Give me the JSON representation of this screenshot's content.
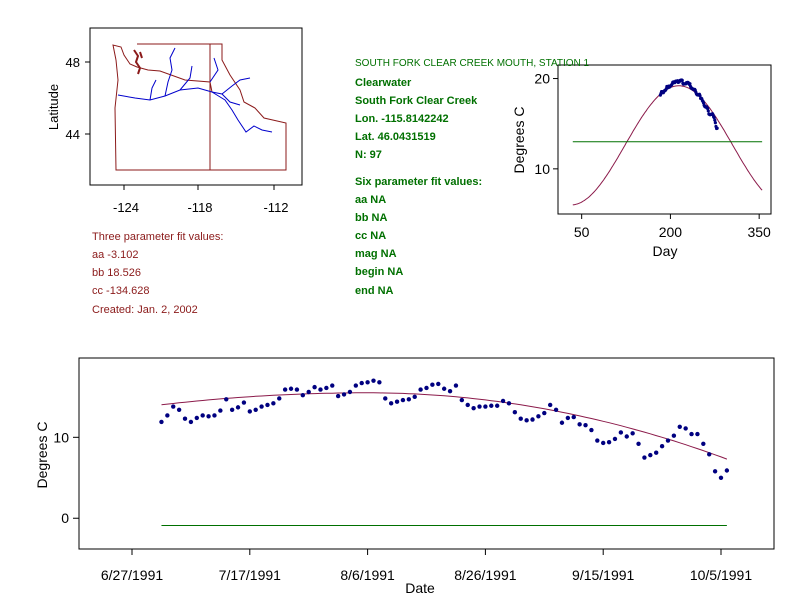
{
  "map": {
    "ylabel": "Latitude",
    "yticks": [
      "48",
      "44"
    ],
    "xticks": [
      "-124",
      "-118",
      "-112"
    ]
  },
  "station": {
    "title": "SOUTH FORK CLEAR CREEK MOUTH, STATION 1",
    "basin": "Clearwater",
    "stream": "South Fork Clear Creek",
    "lon": "Lon. -115.8142242",
    "lat": "Lat. 46.0431519",
    "n": "N: 97"
  },
  "six_param": {
    "heading": "Six parameter fit values:",
    "lines": [
      "aa NA",
      "bb NA",
      "cc NA",
      "mag NA",
      "begin NA",
      "end NA"
    ]
  },
  "three_param": {
    "heading": "Three parameter fit values:",
    "lines": [
      "aa -3.102",
      "bb 18.526",
      "cc -134.628"
    ],
    "created": "Created:   Jan. 2, 2002"
  },
  "colors": {
    "points": "#000080",
    "fit_curve": "#8b1a4a",
    "mean_line": "#007000",
    "label_red": "#8b1a1a",
    "label_green": "#007000"
  },
  "chart_data": [
    {
      "type": "scatter",
      "xlabel": "Day",
      "ylabel": "Degrees C",
      "xticks": [
        50,
        200,
        350
      ],
      "yticks": [
        10,
        20
      ],
      "xlim": [
        10,
        370
      ],
      "ylim": [
        5,
        21.5
      ],
      "fit": {
        "aa": -3.102,
        "bb": 18.526,
        "cc": -134.628
      },
      "mean_line": 13.0,
      "mean_line_x": [
        35,
        355
      ],
      "curve_x": [
        35,
        355
      ]
    },
    {
      "type": "scatter",
      "xlabel": "Date",
      "ylabel": "Degrees C",
      "xticks": [
        "6/27/1991",
        "7/17/1991",
        "8/6/1991",
        "8/26/1991",
        "9/15/1991",
        "10/5/1991"
      ],
      "ytick_values": [
        0,
        10
      ],
      "start_date": "6/27/1991",
      "xlim_days": [
        -9,
        109
      ],
      "ylim": [
        -3.8,
        19.8
      ],
      "mean_line": -0.9,
      "series": [
        {
          "values": [
            [
              "7/2/1991",
              11.9
            ],
            [
              "7/3/1991",
              12.7
            ],
            [
              "7/4/1991",
              13.8
            ],
            [
              "7/5/1991",
              13.4
            ],
            [
              "7/6/1991",
              12.3
            ],
            [
              "7/7/1991",
              11.9
            ],
            [
              "7/8/1991",
              12.4
            ],
            [
              "7/9/1991",
              12.7
            ],
            [
              "7/10/1991",
              12.6
            ],
            [
              "7/11/1991",
              12.7
            ],
            [
              "7/12/1991",
              13.3
            ],
            [
              "7/13/1991",
              14.7
            ],
            [
              "7/14/1991",
              13.4
            ],
            [
              "7/15/1991",
              13.7
            ],
            [
              "7/16/1991",
              14.3
            ],
            [
              "7/17/1991",
              13.2
            ],
            [
              "7/18/1991",
              13.4
            ],
            [
              "7/19/1991",
              13.8
            ],
            [
              "7/20/1991",
              14.0
            ],
            [
              "7/21/1991",
              14.2
            ],
            [
              "7/22/1991",
              14.8
            ],
            [
              "7/23/1991",
              15.9
            ],
            [
              "7/24/1991",
              16.0
            ],
            [
              "7/25/1991",
              15.9
            ],
            [
              "7/26/1991",
              15.2
            ],
            [
              "7/27/1991",
              15.6
            ],
            [
              "7/28/1991",
              16.2
            ],
            [
              "7/29/1991",
              15.9
            ],
            [
              "7/30/1991",
              16.1
            ],
            [
              "7/31/1991",
              16.4
            ],
            [
              "8/1/1991",
              15.1
            ],
            [
              "8/2/1991",
              15.3
            ],
            [
              "8/3/1991",
              15.6
            ],
            [
              "8/4/1991",
              16.4
            ],
            [
              "8/5/1991",
              16.7
            ],
            [
              "8/6/1991",
              16.8
            ],
            [
              "8/7/1991",
              17.0
            ],
            [
              "8/8/1991",
              16.8
            ],
            [
              "8/9/1991",
              14.8
            ],
            [
              "8/10/1991",
              14.2
            ],
            [
              "8/11/1991",
              14.4
            ],
            [
              "8/12/1991",
              14.6
            ],
            [
              "8/13/1991",
              14.7
            ],
            [
              "8/14/1991",
              15.0
            ],
            [
              "8/15/1991",
              15.9
            ],
            [
              "8/16/1991",
              16.1
            ],
            [
              "8/17/1991",
              16.5
            ],
            [
              "8/18/1991",
              16.6
            ],
            [
              "8/19/1991",
              16.0
            ],
            [
              "8/20/1991",
              15.7
            ],
            [
              "8/21/1991",
              16.4
            ],
            [
              "8/22/1991",
              14.6
            ],
            [
              "8/23/1991",
              14.0
            ],
            [
              "8/24/1991",
              13.6
            ],
            [
              "8/25/1991",
              13.8
            ],
            [
              "8/26/1991",
              13.8
            ],
            [
              "8/27/1991",
              13.9
            ],
            [
              "8/28/1991",
              13.9
            ],
            [
              "8/29/1991",
              14.5
            ],
            [
              "8/30/1991",
              14.2
            ],
            [
              "8/31/1991",
              13.1
            ],
            [
              "9/1/1991",
              12.3
            ],
            [
              "9/2/1991",
              12.1
            ],
            [
              "9/3/1991",
              12.2
            ],
            [
              "9/4/1991",
              12.6
            ],
            [
              "9/5/1991",
              13.0
            ],
            [
              "9/6/1991",
              14.0
            ],
            [
              "9/7/1991",
              13.4
            ],
            [
              "9/8/1991",
              11.8
            ],
            [
              "9/9/1991",
              12.4
            ],
            [
              "9/10/1991",
              12.5
            ],
            [
              "9/11/1991",
              11.6
            ],
            [
              "9/12/1991",
              11.5
            ],
            [
              "9/13/1991",
              10.9
            ],
            [
              "9/14/1991",
              9.6
            ],
            [
              "9/15/1991",
              9.3
            ],
            [
              "9/16/1991",
              9.4
            ],
            [
              "9/17/1991",
              9.8
            ],
            [
              "9/18/1991",
              10.6
            ],
            [
              "9/19/1991",
              10.1
            ],
            [
              "9/20/1991",
              10.5
            ],
            [
              "9/21/1991",
              9.2
            ],
            [
              "9/22/1991",
              7.5
            ],
            [
              "9/23/1991",
              7.8
            ],
            [
              "9/24/1991",
              8.1
            ],
            [
              "9/25/1991",
              8.9
            ],
            [
              "9/26/1991",
              9.6
            ],
            [
              "9/27/1991",
              10.2
            ],
            [
              "9/28/1991",
              11.3
            ],
            [
              "9/29/1991",
              11.1
            ],
            [
              "9/30/1991",
              10.4
            ],
            [
              "10/1/1991",
              10.4
            ],
            [
              "10/2/1991",
              9.2
            ],
            [
              "10/3/1991",
              7.9
            ],
            [
              "10/4/1991",
              5.8
            ],
            [
              "10/5/1991",
              5.0
            ],
            [
              "10/6/1991",
              5.9
            ]
          ]
        },
        {
          "fit_curve": [
            [
              "7/2/1991",
              12.4
            ],
            [
              "10/6/1991",
              6.3
            ]
          ]
        }
      ]
    }
  ]
}
